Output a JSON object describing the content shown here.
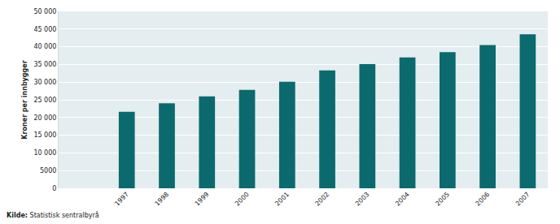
{
  "chart_data": {
    "type": "bar",
    "y_label": "Kroner per innbygger",
    "source": {
      "label": "Kilde:",
      "text": "Statistisk sentralbyrå"
    },
    "categories": [
      "1997",
      "1998",
      "1999",
      "2000",
      "2001",
      "2002",
      "2003",
      "2004",
      "2005",
      "2006",
      "2007"
    ],
    "values": [
      21600,
      24000,
      26000,
      27800,
      30100,
      33300,
      35100,
      37000,
      38500,
      40500,
      43500
    ],
    "color": "#0b6a6d",
    "ylim": [
      0,
      50000
    ],
    "yticks": [
      0,
      5000,
      {
        "value": 10000,
        "label": "10 000"
      },
      {
        "value": 15000,
        "label": "15 000"
      },
      {
        "value": 20000,
        "label": "20 000"
      },
      {
        "value": 25000,
        "label": "25 000"
      },
      {
        "value": 30000,
        "label": "30 000"
      },
      {
        "value": 35000,
        "label": "35 000"
      },
      {
        "value": 40000,
        "label": "40 000"
      },
      {
        "value": 45000,
        "label": "45 000"
      },
      {
        "value": 50000,
        "label": "50 000"
      }
    ],
    "grid": true
  }
}
